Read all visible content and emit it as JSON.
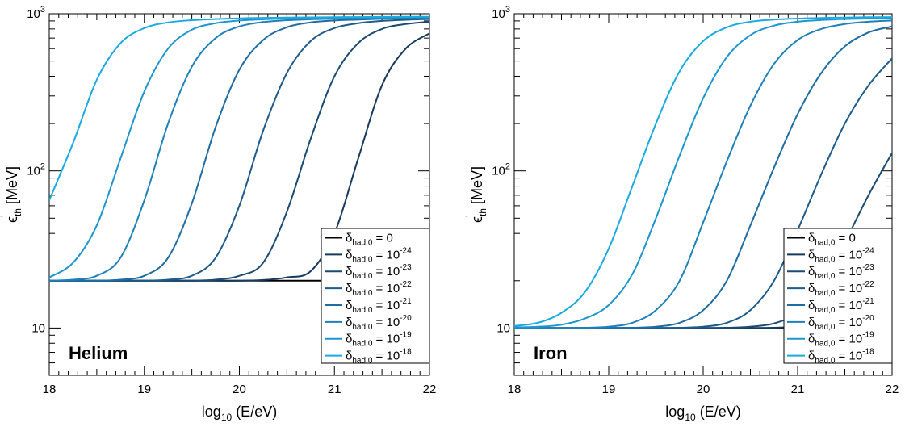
{
  "chart_data": [
    {
      "type": "line",
      "panel": "left",
      "annotation": "Helium",
      "xlabel": {
        "main": "log",
        "sub": "10",
        "rest": " (E/eV)"
      },
      "ylabel": {
        "main": "ϵ",
        "sup": "'",
        "sub": "th",
        "rest": " [MeV]"
      },
      "xlim": [
        18,
        22
      ],
      "ylim": [
        5,
        1000
      ],
      "yscale": "log",
      "xticks": [
        "18",
        "19",
        "20",
        "21",
        "22"
      ],
      "yticks": [
        {
          "value": 10,
          "label": "10"
        },
        {
          "value": 100,
          "base": "10",
          "exp": "2"
        },
        {
          "value": 1000,
          "base": "10",
          "exp": "3"
        }
      ],
      "legend_position": "bottom-right",
      "x": [
        18.0,
        18.25,
        18.5,
        18.75,
        19.0,
        19.25,
        19.5,
        19.75,
        20.0,
        20.25,
        20.5,
        20.75,
        21.0,
        21.25,
        21.5,
        21.75,
        22.0
      ],
      "series": [
        {
          "name": {
            "delta": "δ",
            "sub": "had,0",
            "eq": " = ",
            "base": "0",
            "exp": ""
          },
          "color": "#000000",
          "values": [
            20,
            20,
            20,
            20,
            20,
            20,
            20,
            20,
            20,
            20,
            20,
            20,
            20,
            20,
            20,
            20,
            20
          ]
        },
        {
          "name": {
            "delta": "δ",
            "sub": "had,0",
            "eq": " = ",
            "base": "10",
            "exp": "-24"
          },
          "color": "#173a5c",
          "values": [
            20,
            20,
            20,
            20,
            20,
            20,
            20,
            20,
            20,
            20.2,
            21,
            23,
            40,
            120,
            350,
            600,
            750
          ]
        },
        {
          "name": {
            "delta": "δ",
            "sub": "had,0",
            "eq": " = ",
            "base": "10",
            "exp": "-23"
          },
          "color": "#1b4a72",
          "values": [
            20,
            20,
            20,
            20,
            20,
            20,
            20,
            20.3,
            21.5,
            26,
            55,
            160,
            400,
            650,
            800,
            860,
            890
          ]
        },
        {
          "name": {
            "delta": "δ",
            "sub": "had,0",
            "eq": " = ",
            "base": "10",
            "exp": "-22"
          },
          "color": "#1e5a8a",
          "values": [
            20,
            20,
            20,
            20,
            20,
            20.3,
            21.5,
            28,
            60,
            180,
            420,
            670,
            810,
            870,
            900,
            915,
            925
          ]
        },
        {
          "name": {
            "delta": "δ",
            "sub": "had,0",
            "eq": " = ",
            "base": "10",
            "exp": "-21"
          },
          "color": "#1f6ca3",
          "values": [
            20,
            20,
            20,
            20.3,
            21.5,
            28,
            62,
            190,
            440,
            680,
            820,
            880,
            905,
            918,
            928,
            935,
            940
          ]
        },
        {
          "name": {
            "delta": "δ",
            "sub": "had,0",
            "eq": " = ",
            "base": "10",
            "exp": "-20"
          },
          "color": "#1e80bb",
          "values": [
            20,
            20.3,
            21.5,
            28,
            65,
            200,
            460,
            700,
            830,
            885,
            910,
            922,
            930,
            936,
            940,
            944,
            946
          ]
        },
        {
          "name": {
            "delta": "δ",
            "sub": "had,0",
            "eq": " = ",
            "base": "10",
            "exp": "-19"
          },
          "color": "#1d95cf",
          "values": [
            21,
            26,
            45,
            120,
            320,
            600,
            790,
            870,
            905,
            922,
            932,
            938,
            942,
            945,
            948,
            950,
            952
          ]
        },
        {
          "name": {
            "delta": "δ",
            "sub": "had,0",
            "eq": " = ",
            "base": "10",
            "exp": "-18"
          },
          "color": "#1aaae0",
          "values": [
            65,
            150,
            380,
            650,
            810,
            880,
            910,
            925,
            935,
            941,
            945,
            948,
            951,
            953,
            955,
            956,
            957
          ]
        }
      ]
    },
    {
      "type": "line",
      "panel": "right",
      "annotation": "Iron",
      "xlabel": {
        "main": "log",
        "sub": "10",
        "rest": " (E/eV)"
      },
      "ylabel": {
        "main": "ϵ",
        "sup": "'",
        "sub": "th",
        "rest": " [MeV]"
      },
      "xlim": [
        18,
        22
      ],
      "ylim": [
        5,
        1000
      ],
      "yscale": "log",
      "xticks": [
        "18",
        "19",
        "20",
        "21",
        "22"
      ],
      "yticks": [
        {
          "value": 10,
          "label": "10"
        },
        {
          "value": 100,
          "base": "10",
          "exp": "2"
        },
        {
          "value": 1000,
          "base": "10",
          "exp": "3"
        }
      ],
      "legend_position": "bottom-right",
      "x": [
        18.0,
        18.25,
        18.5,
        18.75,
        19.0,
        19.25,
        19.5,
        19.75,
        20.0,
        20.25,
        20.5,
        20.75,
        21.0,
        21.25,
        21.5,
        21.75,
        22.0
      ],
      "series": [
        {
          "name": {
            "delta": "δ",
            "sub": "had,0",
            "eq": " = ",
            "base": "0",
            "exp": ""
          },
          "color": "#000000",
          "values": [
            10,
            10,
            10,
            10,
            10,
            10,
            10,
            10,
            10,
            10,
            10,
            10,
            10,
            10,
            10,
            10,
            10
          ]
        },
        {
          "name": {
            "delta": "δ",
            "sub": "had,0",
            "eq": " = ",
            "base": "10",
            "exp": "-24"
          },
          "color": "#173a5c",
          "values": [
            10,
            10,
            10,
            10,
            10,
            10,
            10,
            10,
            10,
            10,
            10,
            10.05,
            10.2,
            10.6,
            12,
            16,
            27
          ]
        },
        {
          "name": {
            "delta": "δ",
            "sub": "had,0",
            "eq": " = ",
            "base": "10",
            "exp": "-23"
          },
          "color": "#1b4a72",
          "values": [
            10,
            10,
            10,
            10,
            10,
            10,
            10,
            10,
            10,
            10.05,
            10.2,
            10.7,
            12.5,
            18,
            35,
            70,
            130
          ]
        },
        {
          "name": {
            "delta": "δ",
            "sub": "had,0",
            "eq": " = ",
            "base": "10",
            "exp": "-22"
          },
          "color": "#1e5a8a",
          "values": [
            10,
            10,
            10,
            10,
            10,
            10,
            10,
            10.05,
            10.2,
            10.8,
            13,
            20,
            42,
            95,
            200,
            350,
            520
          ]
        },
        {
          "name": {
            "delta": "δ",
            "sub": "had,0",
            "eq": " = ",
            "base": "10",
            "exp": "-21"
          },
          "color": "#1f6ca3",
          "values": [
            10,
            10,
            10,
            10,
            10,
            10.05,
            10.2,
            10.8,
            13,
            20,
            45,
            105,
            230,
            420,
            620,
            760,
            830
          ]
        },
        {
          "name": {
            "delta": "δ",
            "sub": "had,0",
            "eq": " = ",
            "base": "10",
            "exp": "-20"
          },
          "color": "#1e80bb",
          "values": [
            10,
            10,
            10,
            10.05,
            10.2,
            10.8,
            13,
            20,
            47,
            115,
            260,
            480,
            680,
            800,
            860,
            890,
            905
          ]
        },
        {
          "name": {
            "delta": "δ",
            "sub": "had,0",
            "eq": " = ",
            "base": "10",
            "exp": "-19"
          },
          "color": "#1d95cf",
          "values": [
            10.1,
            10.2,
            10.5,
            11.5,
            14,
            22,
            50,
            125,
            290,
            530,
            730,
            840,
            890,
            912,
            925,
            932,
            937
          ]
        },
        {
          "name": {
            "delta": "δ",
            "sub": "had,0",
            "eq": " = ",
            "base": "10",
            "exp": "-18"
          },
          "color": "#1aaae0",
          "values": [
            10.3,
            10.8,
            12.5,
            17,
            32,
            80,
            200,
            430,
            670,
            820,
            890,
            918,
            932,
            940,
            946,
            950,
            953
          ]
        }
      ]
    }
  ]
}
